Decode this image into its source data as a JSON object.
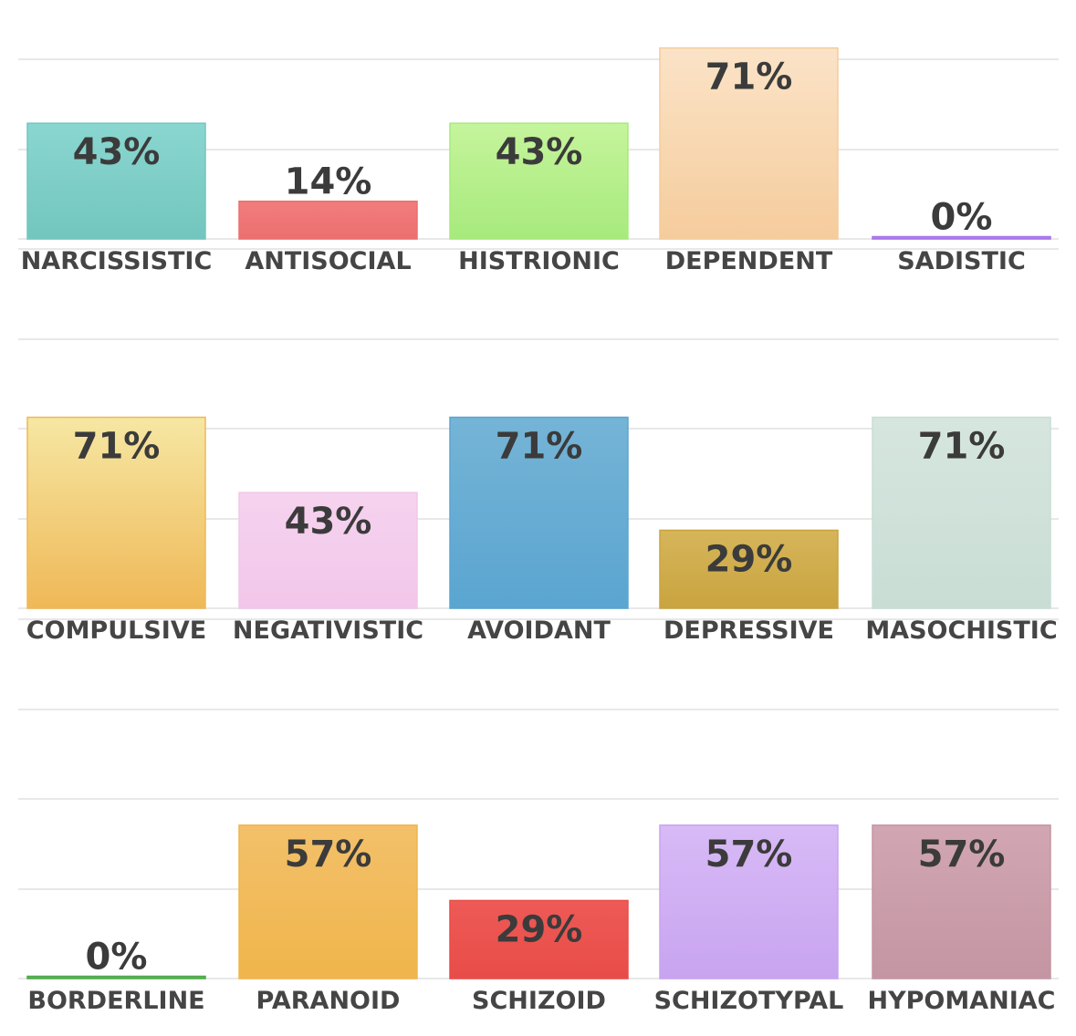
{
  "chart_data": [
    {
      "type": "bar",
      "categories": [
        "NARCISSISTIC",
        "ANTISOCIAL",
        "HISTRIONIC",
        "DEPENDENT",
        "SADISTIC"
      ],
      "values": [
        43,
        14,
        43,
        71,
        0
      ],
      "value_labels": [
        "43%",
        "14%",
        "43%",
        "71%",
        "0%"
      ],
      "colors": [
        [
          "#8ad6d0",
          "#72c6be"
        ],
        [
          "#f27d7d",
          "#ec6f6f"
        ],
        [
          "#c5f49c",
          "#a7ea7c"
        ],
        [
          "#fbe3c7",
          "#f5cc9c"
        ],
        [
          "#b98bf0",
          "#a673e8"
        ]
      ],
      "ylim": [
        0,
        100
      ],
      "grid": true,
      "title": "",
      "xlabel": "",
      "ylabel": ""
    },
    {
      "type": "bar",
      "categories": [
        "COMPULSIVE",
        "NEGATIVISTIC",
        "AVOIDANT",
        "DEPRESSIVE",
        "MASOCHISTIC"
      ],
      "values": [
        71,
        43,
        71,
        29,
        71
      ],
      "value_labels": [
        "71%",
        "43%",
        "71%",
        "29%",
        "71%"
      ],
      "colors": [
        [
          "#f6e7a3",
          "#efb857"
        ],
        [
          "#f6d3ef",
          "#f2c6ea"
        ],
        [
          "#75b4d6",
          "#5aa5d1"
        ],
        [
          "#d6b55a",
          "#c9a43f"
        ],
        [
          "#d6e6df",
          "#c9ddd5"
        ]
      ],
      "ylim": [
        0,
        100
      ],
      "grid": true,
      "title": "",
      "xlabel": "",
      "ylabel": ""
    },
    {
      "type": "bar",
      "categories": [
        "BORDERLINE",
        "PARANOID",
        "SCHIZOID",
        "SCHIZOTYPAL",
        "HYPOMANIAC"
      ],
      "values": [
        0,
        57,
        29,
        57,
        57
      ],
      "value_labels": [
        "0%",
        "57%",
        "29%",
        "57%",
        "57%"
      ],
      "colors": [
        [
          "#6fbf6a",
          "#4fa84a"
        ],
        [
          "#f3c06a",
          "#f0b54b"
        ],
        [
          "#ee5a56",
          "#e84c48"
        ],
        [
          "#d8baf6",
          "#c8a4f0"
        ],
        [
          "#d1a6b2",
          "#c495a2"
        ]
      ],
      "ylim": [
        0,
        100
      ],
      "grid": true,
      "title": "",
      "xlabel": "",
      "ylabel": ""
    }
  ]
}
